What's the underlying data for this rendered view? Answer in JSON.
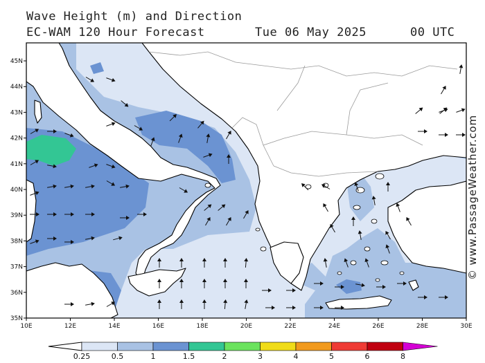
{
  "header": {
    "title": "Wave Height (m) and Direction",
    "subtitle": "EC-WAM 120 Hour Forecast",
    "date": "Tue 06 May 2025",
    "time": "00 UTC"
  },
  "map": {
    "lon_range": [
      10,
      30
    ],
    "lat_range": [
      35,
      45.7
    ],
    "x_ticks": [
      "10E",
      "12E",
      "14E",
      "16E",
      "18E",
      "20E",
      "22E",
      "24E",
      "26E",
      "28E",
      "30E"
    ],
    "y_ticks": [
      "35N",
      "36N",
      "37N",
      "38N",
      "39N",
      "40N",
      "41N",
      "42N",
      "43N",
      "44N",
      "45N"
    ]
  },
  "colorbar": {
    "labels": [
      "0.25",
      "0.5",
      "1",
      "1.5",
      "2",
      "3",
      "4",
      "5",
      "6",
      "8"
    ],
    "colors": [
      "#dce6f5",
      "#a9c2e4",
      "#6b93d2",
      "#33c694",
      "#6be35e",
      "#f0dc19",
      "#f19a1e",
      "#ef3b35",
      "#c00010",
      "#d400d4"
    ]
  },
  "credit": "© www.PassageWeather.com"
}
